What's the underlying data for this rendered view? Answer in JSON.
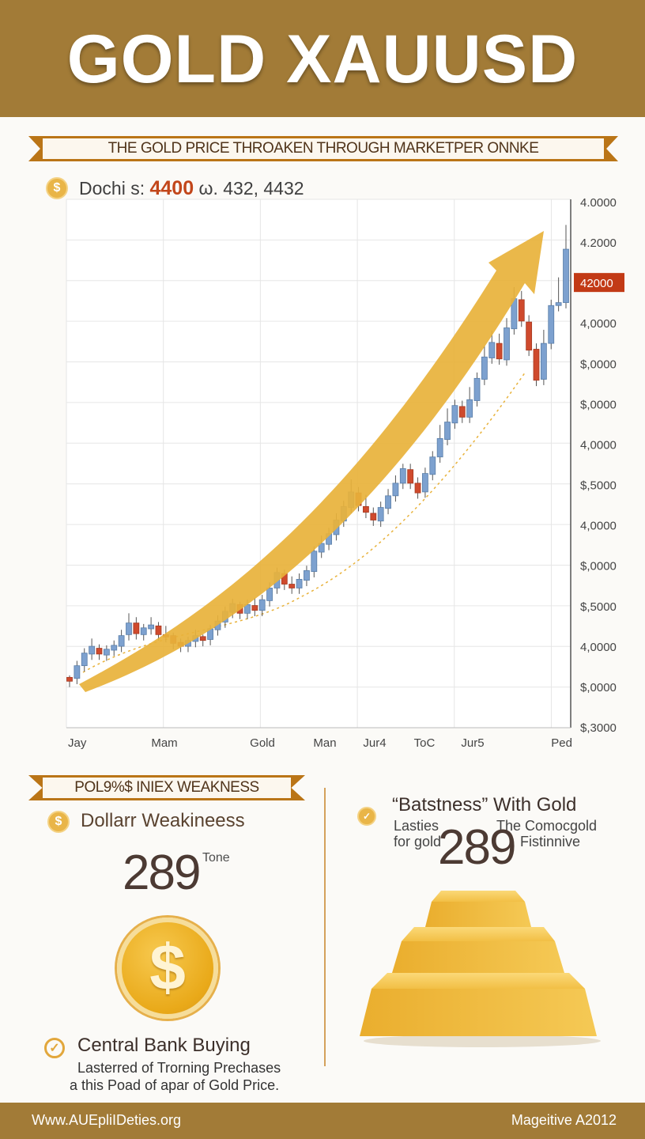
{
  "header": {
    "title": "GOLD XAUUSD"
  },
  "ribbon_top": {
    "text": "THE GOLD PRICE THROAKEN THROUGH MARKETPER ONNKE"
  },
  "price_line": {
    "prefix": "Dochi s:",
    "highlight": "4400",
    "suffix": "ω. 432, 4432"
  },
  "chart_data": {
    "type": "candlestick",
    "title": "",
    "xlabel": "",
    "ylabel": "",
    "x_tick_labels": [
      "Jay",
      "Mam",
      "Gold",
      "Man",
      "Jur4",
      "ToC",
      "Jur5",
      "Ped"
    ],
    "y_tick_labels": [
      "4.0000",
      "4.2000",
      "42000",
      "4,0000",
      "$,0000",
      "$,0000",
      "4,0000",
      "$,5000",
      "4,0000",
      "$,0000",
      "$,5000",
      "4,0000",
      "$,0000",
      "$,3000"
    ],
    "highlighted_tick": "42000",
    "grid": true,
    "trend_arrow": true,
    "colors": {
      "up": "#7da1cf",
      "down": "#cf4a2d",
      "arrow": "#e8b23b",
      "highlight": "#c23a16"
    },
    "candles": [
      [
        0,
        0.6,
        0.2,
        0.8
      ],
      [
        1,
        0.5,
        1.8,
        2.3
      ],
      [
        2,
        1.8,
        3.1,
        3.6
      ],
      [
        3,
        3.0,
        3.8,
        4.6
      ],
      [
        4,
        3.6,
        3.0,
        4.0
      ],
      [
        5,
        2.9,
        3.5,
        3.9
      ],
      [
        6,
        3.4,
        3.9,
        4.4
      ],
      [
        7,
        3.8,
        4.9,
        5.5
      ],
      [
        8,
        5.0,
        6.2,
        7.2
      ],
      [
        9,
        6.2,
        5.1,
        6.8
      ],
      [
        10,
        5.0,
        5.7,
        6.1
      ],
      [
        11,
        5.6,
        6.0,
        6.8
      ],
      [
        12,
        5.9,
        5.0,
        6.3
      ],
      [
        13,
        5.0,
        4.8,
        5.9
      ],
      [
        14,
        4.9,
        4.1,
        5.2
      ],
      [
        15,
        4.2,
        3.8,
        4.6
      ],
      [
        16,
        3.8,
        4.4,
        4.8
      ],
      [
        17,
        4.3,
        4.9,
        5.5
      ],
      [
        18,
        4.8,
        4.4,
        5.0
      ],
      [
        19,
        4.5,
        5.6,
        6.0
      ],
      [
        20,
        5.5,
        6.4,
        7.0
      ],
      [
        21,
        6.3,
        7.4,
        7.9
      ],
      [
        22,
        7.3,
        8.2,
        8.7
      ],
      [
        23,
        8.1,
        7.2,
        8.4
      ],
      [
        24,
        7.2,
        8.1,
        8.6
      ],
      [
        25,
        8.0,
        7.5,
        8.8
      ],
      [
        26,
        7.5,
        8.6,
        9.1
      ],
      [
        27,
        8.5,
        9.8,
        10.4
      ],
      [
        28,
        9.8,
        11.4,
        11.9
      ],
      [
        29,
        11.3,
        10.2,
        11.7
      ],
      [
        30,
        10.2,
        9.8,
        11.0
      ],
      [
        31,
        9.8,
        10.7,
        11.3
      ],
      [
        32,
        10.6,
        11.6,
        12.1
      ],
      [
        33,
        11.5,
        13.6,
        14.1
      ],
      [
        34,
        13.5,
        14.4,
        15.2
      ],
      [
        35,
        14.3,
        15.4,
        16.0
      ],
      [
        36,
        15.3,
        16.8,
        17.5
      ],
      [
        37,
        16.7,
        18.2,
        18.8
      ],
      [
        38,
        18.1,
        19.7,
        21.0
      ],
      [
        39,
        19.6,
        18.3,
        20.2
      ],
      [
        40,
        18.2,
        17.6,
        19.4
      ],
      [
        41,
        17.5,
        16.8,
        18.1
      ],
      [
        42,
        16.7,
        18.1,
        18.7
      ],
      [
        43,
        18.0,
        19.3,
        20.0
      ],
      [
        44,
        19.3,
        20.6,
        21.4
      ],
      [
        45,
        20.6,
        22.1,
        22.6
      ],
      [
        46,
        22.0,
        20.6,
        22.6
      ],
      [
        47,
        20.6,
        19.6,
        21.2
      ],
      [
        48,
        19.7,
        21.6,
        22.2
      ],
      [
        49,
        21.5,
        23.3,
        23.9
      ],
      [
        50,
        23.3,
        25.2,
        26.6
      ],
      [
        51,
        25.1,
        26.9,
        28.3
      ],
      [
        52,
        26.8,
        28.6,
        29.2
      ],
      [
        53,
        28.5,
        27.4,
        29.1
      ],
      [
        54,
        27.4,
        29.2,
        30.5
      ],
      [
        55,
        29.1,
        31.4,
        32.0
      ],
      [
        56,
        31.3,
        33.6,
        34.8
      ],
      [
        57,
        33.5,
        35.1,
        36.3
      ],
      [
        58,
        35.0,
        33.4,
        36.0
      ],
      [
        59,
        33.3,
        36.6,
        37.6
      ],
      [
        60,
        36.5,
        39.6,
        40.8
      ],
      [
        61,
        39.5,
        37.3,
        40.4
      ],
      [
        62,
        37.2,
        34.3,
        37.9
      ],
      [
        63,
        34.4,
        31.2,
        35.0
      ],
      [
        64,
        31.3,
        35.0,
        36.4
      ],
      [
        65,
        35.0,
        38.9,
        39.5
      ],
      [
        66,
        38.9,
        39.2,
        41.8
      ],
      [
        67,
        39.2,
        44.7,
        47.2
      ]
    ]
  },
  "left_ribbon": {
    "text": "POL9%$ INIEX WEAKNESS"
  },
  "dollar_weakness": {
    "title": "Dollarr Weakineess",
    "number": "289",
    "sup": "Tone"
  },
  "right_panel": {
    "title": "“Batstness” With Gold",
    "line1a": "Lasties",
    "line1b": "The Comocgold",
    "line2a": "for gold",
    "line2b": "Fistinnive",
    "number": "289"
  },
  "central_bank": {
    "title": "Central Bank Buying",
    "line1": "Lasterred of Trorning Prechases",
    "line2": "a this Poad of apar of Gold Price."
  },
  "footer": {
    "left": "Www.AUEpliIDeties.org",
    "right": "Mageitive A2012"
  },
  "icons": {
    "coin": "dollar-coin-icon",
    "check": "check-circle-icon",
    "gold_bars": "gold-bars-icon"
  }
}
